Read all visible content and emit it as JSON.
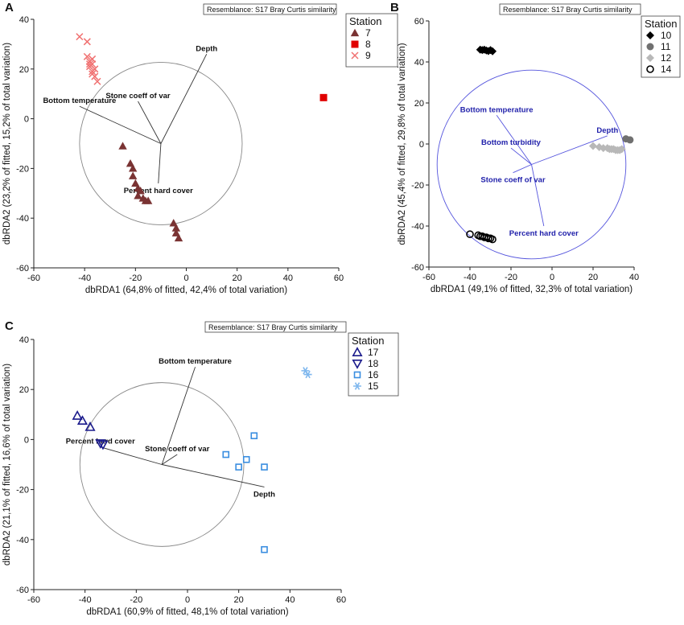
{
  "colors": {
    "st7": "#7a3333",
    "st8": "#e00000",
    "st9": "#f07070",
    "st10": "#000000",
    "st11": "#707070",
    "st12": "#b8b8b8",
    "st14": "#000000",
    "st17": "#1a1a8c",
    "st18": "#1a1a8c",
    "st16": "#3a8ee0",
    "st15": "#80b8ee",
    "circleA": "#888888",
    "circleB": "#5555dd",
    "circleC": "#888888",
    "vectorA": "#333333",
    "vectorB": "#5555dd",
    "vectorC": "#333333",
    "vlabelB": "#1f1faa"
  },
  "chart_data": [
    {
      "panel": "A",
      "type": "scatter",
      "resemblance": "Resemblance: S17 Bray Curtis similarity",
      "xlabel": "dbRDA1 (64,8% of fitted, 42,4% of total variation)",
      "ylabel": "dbRDA2 (23,2% of fitted, 15,2% of total variation)",
      "xlim": [
        -60,
        60
      ],
      "ylim": [
        -60,
        40
      ],
      "xticks": [
        -60,
        -40,
        -20,
        0,
        20,
        40,
        60
      ],
      "yticks": [
        -60,
        -40,
        -20,
        0,
        20,
        40
      ],
      "legend_title": "Station",
      "circle": {
        "cx": -10,
        "cy": -10,
        "r": 32
      },
      "vectors": [
        {
          "label": "Depth",
          "x2": 8,
          "y2": 26
        },
        {
          "label": "Stone coeff of var",
          "x2": -19,
          "y2": 7
        },
        {
          "label": "Bottom temperature",
          "x2": -42,
          "y2": 5
        },
        {
          "label": "Percent hard cover",
          "x2": -11,
          "y2": -26
        }
      ],
      "series": [
        {
          "name": "7",
          "marker": "triangle",
          "color_key": "st7",
          "x": [
            -25,
            -22,
            -21,
            -21,
            -20,
            -19,
            -19,
            -18,
            -17,
            -16,
            -15,
            -5,
            -4,
            -4,
            -3
          ],
          "y": [
            -11,
            -18,
            -20,
            -23,
            -26,
            -28,
            -31,
            -29,
            -32,
            -33,
            -33,
            -42,
            -44,
            -46,
            -48
          ]
        },
        {
          "name": "8",
          "marker": "square",
          "color_key": "st8",
          "x": [
            54
          ],
          "y": [
            8.5
          ]
        },
        {
          "name": "9",
          "marker": "cross",
          "color_key": "st9",
          "x": [
            -42,
            -39,
            -39,
            -38,
            -38,
            -37,
            -38,
            -36,
            -37,
            -37,
            -36,
            -35,
            -37
          ],
          "y": [
            33,
            31,
            25,
            23,
            22,
            22,
            21,
            20,
            19,
            18,
            17,
            15,
            24
          ]
        }
      ]
    },
    {
      "panel": "B",
      "type": "scatter",
      "resemblance": "Resemblance: S17 Bray Curtis similarity",
      "xlabel": "dbRDA1 (49,1% of fitted, 32,3% of total variation)",
      "ylabel": "dbRDA2 (45,4% of fitted, 29,8% of total variation)",
      "xlim": [
        -60,
        40
      ],
      "ylim": [
        -60,
        60
      ],
      "xticks": [
        -60,
        -40,
        -20,
        0,
        20,
        40
      ],
      "yticks": [
        -60,
        -40,
        -20,
        0,
        20,
        40,
        60
      ],
      "legend_title": "Station",
      "circle": {
        "cx": -10,
        "cy": -10,
        "r": 46
      },
      "vectors": [
        {
          "label": "Bottom temperature",
          "x2": -27,
          "y2": 14
        },
        {
          "label": "Bottom turbidity",
          "x2": -20,
          "y2": -2
        },
        {
          "label": "Depth",
          "x2": 27,
          "y2": 4
        },
        {
          "label": "Stone coeff of var",
          "x2": -19,
          "y2": -14
        },
        {
          "label": "Percent hard cover",
          "x2": -4,
          "y2": -40
        }
      ],
      "series": [
        {
          "name": "10",
          "marker": "diamond",
          "color_key": "st10",
          "x": [
            -35,
            -34,
            -33,
            -32,
            -31,
            -30,
            -29
          ],
          "y": [
            46,
            45.8,
            46,
            45.6,
            45.3,
            45.8,
            45.2
          ]
        },
        {
          "name": "11",
          "marker": "circle",
          "color_key": "st11",
          "x": [
            36,
            38
          ],
          "y": [
            2.5,
            2
          ]
        },
        {
          "name": "12",
          "marker": "diamond",
          "color_key": "st12",
          "x": [
            20,
            23,
            25,
            27,
            28,
            29,
            30,
            31,
            32,
            33,
            34
          ],
          "y": [
            -1,
            -1.5,
            -2,
            -2,
            -2.5,
            -2.5,
            -2.5,
            -3,
            -3,
            -3,
            -2.5
          ]
        },
        {
          "name": "14",
          "marker": "open-circle",
          "color_key": "st14",
          "x": [
            -40,
            -36,
            -35,
            -34,
            -33,
            -32,
            -31,
            -30,
            -29
          ],
          "y": [
            -44,
            -44.5,
            -45,
            -45,
            -45.5,
            -45.5,
            -46,
            -46,
            -46.5
          ]
        }
      ]
    },
    {
      "panel": "C",
      "type": "scatter",
      "resemblance": "Resemblance: S17 Bray Curtis similarity",
      "xlabel": "dbRDA1 (60,9% of fitted, 48,1% of total variation)",
      "ylabel": "dbRDA2 (21,1% of fitted, 16,6% of total variation)",
      "xlim": [
        -60,
        60
      ],
      "ylim": [
        -60,
        40
      ],
      "xticks": [
        -60,
        -40,
        -20,
        0,
        20,
        40,
        60
      ],
      "yticks": [
        -60,
        -40,
        -20,
        0,
        20,
        40
      ],
      "legend_title": "Station",
      "circle": {
        "cx": -10,
        "cy": -10,
        "r": 32
      },
      "vectors": [
        {
          "label": "Bottom temperature",
          "x2": 3,
          "y2": 29
        },
        {
          "label": "Percent hard cover",
          "x2": -34,
          "y2": -3
        },
        {
          "label": "Stone coeff of var",
          "x2": -4,
          "y2": -6
        },
        {
          "label": "Depth",
          "x2": 30,
          "y2": -19
        }
      ],
      "series": [
        {
          "name": "17",
          "marker": "open-triangle",
          "color_key": "st17",
          "x": [
            -43,
            -41,
            -38
          ],
          "y": [
            9.5,
            7.5,
            5
          ]
        },
        {
          "name": "18",
          "marker": "open-triangle-down",
          "color_key": "st18",
          "x": [
            -34,
            -33
          ],
          "y": [
            -1.5,
            -2
          ]
        },
        {
          "name": "16",
          "marker": "open-square",
          "color_key": "st16",
          "x": [
            15,
            20,
            23,
            26,
            30,
            30
          ],
          "y": [
            -6,
            -11,
            -8,
            1.5,
            -11,
            -44
          ]
        },
        {
          "name": "15",
          "marker": "asterisk",
          "color_key": "st15",
          "x": [
            46,
            47
          ],
          "y": [
            27.5,
            26
          ]
        }
      ]
    }
  ]
}
